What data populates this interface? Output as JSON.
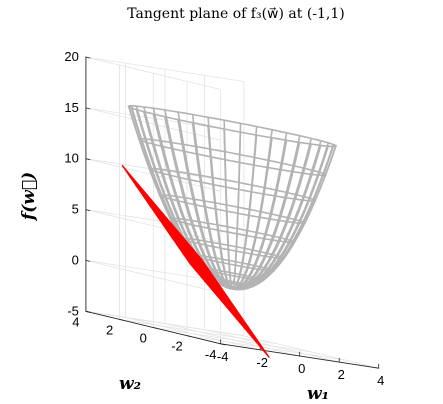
{
  "chart_data": {
    "type": "surface",
    "title": "Tangent plane of f₃(w⃗) at (-1,1)",
    "xlabel": "w₁",
    "ylabel": "w₂",
    "zlabel": "f(w⃗)",
    "xlim": [
      -4,
      4
    ],
    "ylim": [
      -4,
      4
    ],
    "zlim": [
      -5,
      20
    ],
    "x_ticks": [
      "-4",
      "-2",
      "0",
      "2",
      "4"
    ],
    "y_ticks": [
      "-4",
      "-2",
      "0",
      "2",
      "4"
    ],
    "z_ticks": [
      "-5",
      "0",
      "5",
      "10",
      "15",
      "20"
    ],
    "grid": true,
    "series": [
      {
        "kind": "paraboloid surface",
        "equation": "f(w) = w1^2 + w2^2",
        "radius_range": [
          0,
          4
        ],
        "color": "#b3b3b3"
      },
      {
        "kind": "tangent plane mesh",
        "equation": "z = -2*w1 + 2*w2 - 2",
        "point": [
          -1,
          1
        ],
        "x_range": [
          -3,
          1
        ],
        "y_range": [
          -1,
          3
        ],
        "color": "#ff0000"
      }
    ]
  }
}
